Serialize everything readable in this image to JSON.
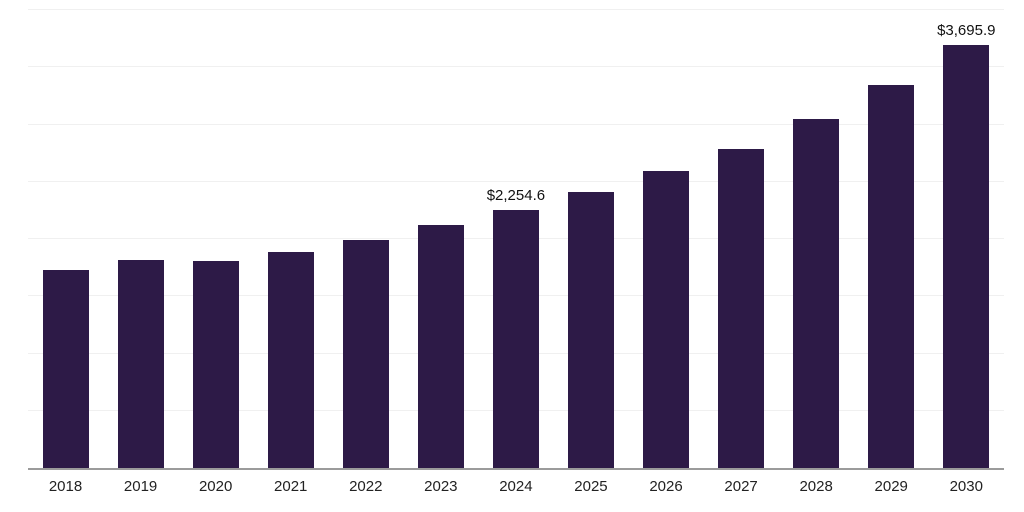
{
  "chart_data": {
    "type": "bar",
    "title": "",
    "xlabel": "",
    "ylabel": "",
    "categories": [
      "2018",
      "2019",
      "2020",
      "2021",
      "2022",
      "2023",
      "2024",
      "2025",
      "2026",
      "2027",
      "2028",
      "2029",
      "2030"
    ],
    "values": [
      1730,
      1820,
      1805,
      1890,
      1990,
      2120,
      2254.6,
      2410,
      2590,
      2790,
      3050,
      3345,
      3695.9
    ],
    "data_labels": [
      {
        "category": "2024",
        "text": "$2,254.6"
      },
      {
        "category": "2030",
        "text": "$3,695.9"
      }
    ],
    "ylim": [
      0,
      4000
    ],
    "gridline_step": 500,
    "grid": true,
    "legend": "none",
    "bar_color": "#2d1a47",
    "axis_line_color": "#9b9b9b",
    "gridline_color": "#f0f0f0"
  }
}
